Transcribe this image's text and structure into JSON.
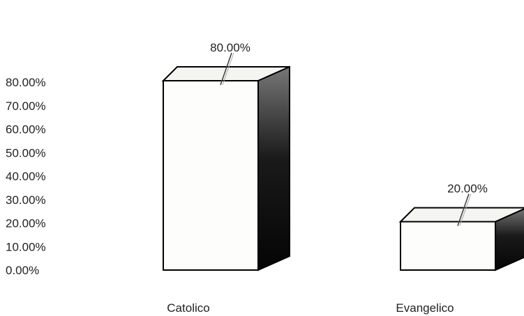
{
  "chart_data": {
    "type": "bar",
    "categories": [
      "Catolico",
      "Evangelico"
    ],
    "values": [
      80.0,
      20.0
    ],
    "data_labels": [
      "80.00%",
      "20.00%"
    ],
    "y_ticks": [
      "0.00%",
      "10.00%",
      "20.00%",
      "30.00%",
      "40.00%",
      "50.00%",
      "60.00%",
      "70.00%",
      "80.00%"
    ],
    "ylim": [
      0,
      80
    ],
    "style": "3d-column",
    "grid": false,
    "legend": false,
    "colors": {
      "face": "#fdfdfb",
      "side": "#111111",
      "top": "#f4f4f0",
      "outline": "#000000"
    }
  }
}
